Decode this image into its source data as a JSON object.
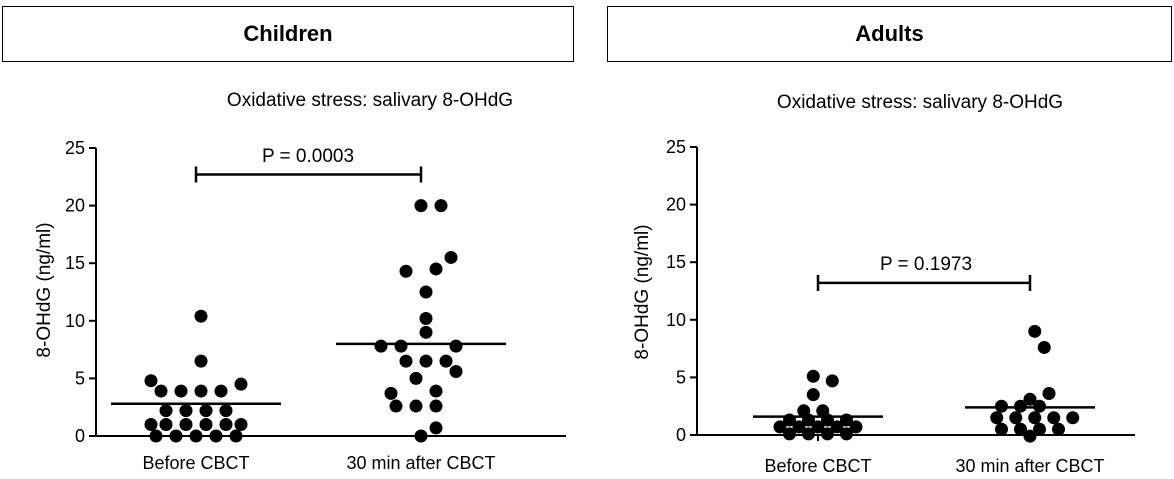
{
  "panels": {
    "left_title": "Children",
    "right_title": "Adults"
  },
  "chart_data": [
    {
      "type": "scatter",
      "title": "Oxidative stress: salivary 8-OHdG",
      "xlabel": "",
      "ylabel": "8-OHdG (ng/ml)",
      "ylim": [
        0,
        25
      ],
      "yticks": [
        "0",
        "5",
        "10",
        "15",
        "20",
        "25"
      ],
      "categories": [
        "Before CBCT",
        "30 min after CBCT"
      ],
      "groups": [
        {
          "category": "Before CBCT",
          "mean": 2.8,
          "points": [
            {
              "o": -4,
              "y": 0.0
            },
            {
              "o": -2,
              "y": 0.0
            },
            {
              "o": 0,
              "y": 0.0
            },
            {
              "o": 2,
              "y": 0.0
            },
            {
              "o": 4,
              "y": 0.0
            },
            {
              "o": -4.5,
              "y": 1.0
            },
            {
              "o": -3,
              "y": 1.0
            },
            {
              "o": -1,
              "y": 1.0
            },
            {
              "o": 1,
              "y": 1.0
            },
            {
              "o": 3,
              "y": 1.0
            },
            {
              "o": 4.5,
              "y": 1.0
            },
            {
              "o": -3,
              "y": 2.2
            },
            {
              "o": -1,
              "y": 2.2
            },
            {
              "o": 1,
              "y": 2.2
            },
            {
              "o": 3,
              "y": 2.2
            },
            {
              "o": -3.5,
              "y": 3.9
            },
            {
              "o": -1.5,
              "y": 3.9
            },
            {
              "o": 0.5,
              "y": 3.9
            },
            {
              "o": 2.5,
              "y": 3.9
            },
            {
              "o": -4.5,
              "y": 4.8
            },
            {
              "o": 4.5,
              "y": 4.5
            },
            {
              "o": 0.5,
              "y": 6.5
            },
            {
              "o": 0.5,
              "y": 10.4
            }
          ]
        },
        {
          "category": "30 min after CBCT",
          "mean": 8.0,
          "points": [
            {
              "o": 0,
              "y": 0.0
            },
            {
              "o": 1.5,
              "y": 0.7
            },
            {
              "o": -2.5,
              "y": 2.6
            },
            {
              "o": -0.5,
              "y": 2.6
            },
            {
              "o": 1.5,
              "y": 2.6
            },
            {
              "o": -3,
              "y": 3.7
            },
            {
              "o": 1.5,
              "y": 3.9
            },
            {
              "o": -0.5,
              "y": 5.0
            },
            {
              "o": 3.5,
              "y": 5.6
            },
            {
              "o": -1.5,
              "y": 6.5
            },
            {
              "o": 0.5,
              "y": 6.5
            },
            {
              "o": 2.5,
              "y": 6.5
            },
            {
              "o": -4,
              "y": 7.8
            },
            {
              "o": -2,
              "y": 7.8
            },
            {
              "o": 3.5,
              "y": 7.8
            },
            {
              "o": 0.5,
              "y": 9.0
            },
            {
              "o": 0.5,
              "y": 10.2
            },
            {
              "o": 0.5,
              "y": 12.5
            },
            {
              "o": -1.5,
              "y": 14.3
            },
            {
              "o": 1.5,
              "y": 14.5
            },
            {
              "o": 3,
              "y": 15.5
            },
            {
              "o": 0,
              "y": 20.0
            },
            {
              "o": 2,
              "y": 20.0
            }
          ]
        }
      ],
      "annotation": {
        "text": "P = 0.0003",
        "y": 22.7
      }
    },
    {
      "type": "scatter",
      "title": "Oxidative stress: salivary 8-OHdG",
      "xlabel": "",
      "ylabel": "8-OHdG (ng/ml)",
      "ylim": [
        0,
        25
      ],
      "yticks": [
        "0",
        "5",
        "10",
        "15",
        "20",
        "25"
      ],
      "categories": [
        "Before CBCT",
        "30 min after CBCT"
      ],
      "groups": [
        {
          "category": "Before CBCT",
          "mean": 1.6,
          "points": [
            {
              "o": -3,
              "y": 0.1
            },
            {
              "o": -1,
              "y": 0.1
            },
            {
              "o": 1,
              "y": 0.1
            },
            {
              "o": 3,
              "y": 0.1
            },
            {
              "o": -4,
              "y": 0.7
            },
            {
              "o": -2,
              "y": 0.7
            },
            {
              "o": 0,
              "y": 0.7
            },
            {
              "o": 2,
              "y": 0.7
            },
            {
              "o": 4,
              "y": 0.7
            },
            {
              "o": -3,
              "y": 1.3
            },
            {
              "o": -1,
              "y": 1.3
            },
            {
              "o": 1,
              "y": 1.3
            },
            {
              "o": 3,
              "y": 1.3
            },
            {
              "o": -1.5,
              "y": 2.1
            },
            {
              "o": 0.5,
              "y": 2.1
            },
            {
              "o": -0.5,
              "y": 3.5
            },
            {
              "o": -0.5,
              "y": 5.1
            },
            {
              "o": 1.5,
              "y": 4.7
            }
          ]
        },
        {
          "category": "30 min after CBCT",
          "mean": 2.4,
          "points": [
            {
              "o": 0,
              "y": -0.1
            },
            {
              "o": -3,
              "y": 0.5
            },
            {
              "o": -1,
              "y": 0.5
            },
            {
              "o": 1,
              "y": 0.5
            },
            {
              "o": 3,
              "y": 0.5
            },
            {
              "o": -3.5,
              "y": 1.5
            },
            {
              "o": -1.5,
              "y": 1.5
            },
            {
              "o": 0.5,
              "y": 1.5
            },
            {
              "o": 2.5,
              "y": 1.5
            },
            {
              "o": 4.5,
              "y": 1.5
            },
            {
              "o": -3,
              "y": 2.5
            },
            {
              "o": -1,
              "y": 2.5
            },
            {
              "o": 1,
              "y": 2.5
            },
            {
              "o": 0,
              "y": 3.1
            },
            {
              "o": 2,
              "y": 3.6
            },
            {
              "o": 1.5,
              "y": 7.6
            },
            {
              "o": 0.5,
              "y": 9.0
            }
          ]
        }
      ],
      "annotation": {
        "text": "P = 0.1973",
        "y": 13.2
      }
    }
  ]
}
